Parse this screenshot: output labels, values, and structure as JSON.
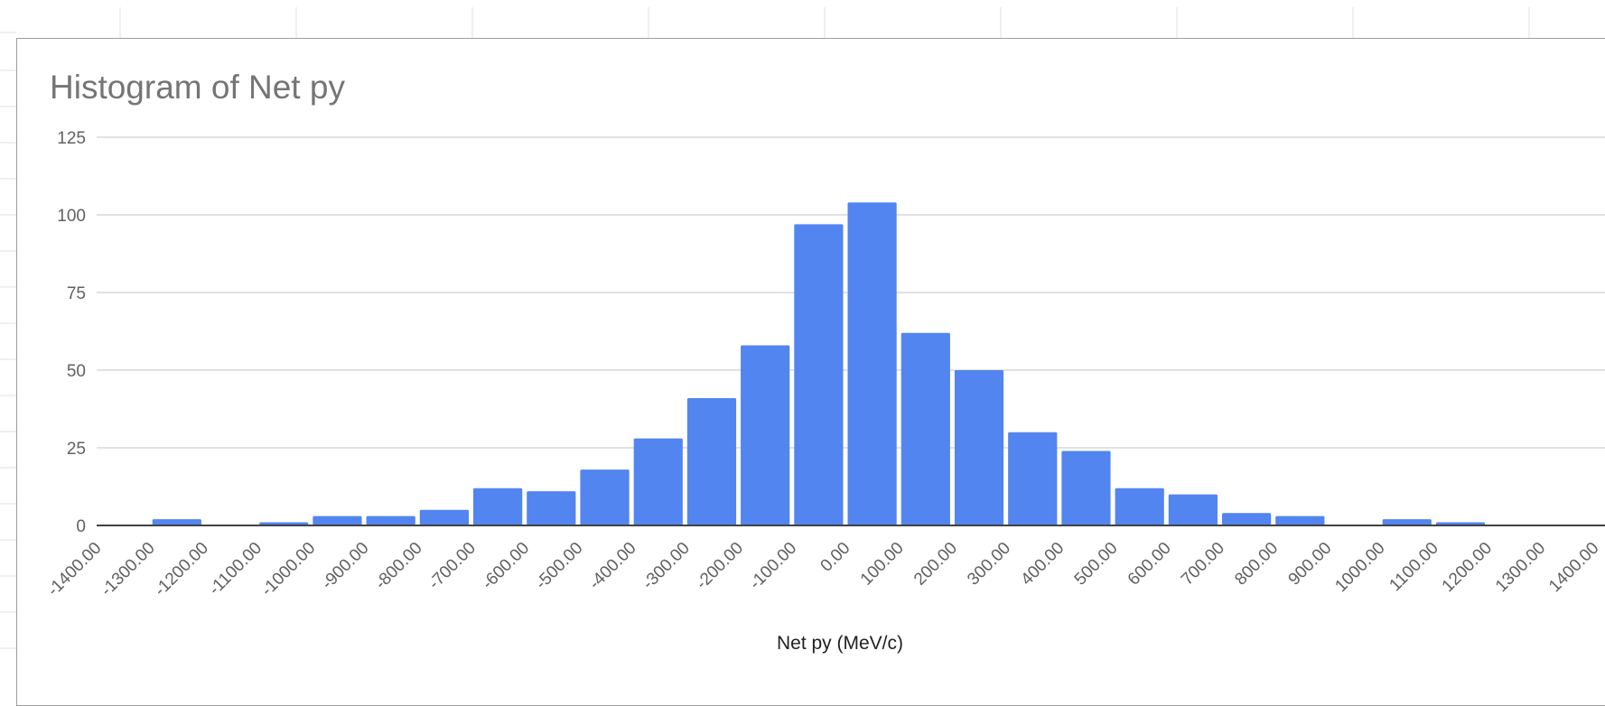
{
  "chart_data": {
    "type": "bar",
    "title": "Histogram of Net py",
    "xlabel": "Net py (MeV/c)",
    "ylabel": "",
    "ylim": [
      0,
      125
    ],
    "yticks": [
      "0",
      "25",
      "50",
      "75",
      "100",
      "125"
    ],
    "bin_edges": [
      "-1400.00",
      "-1300.00",
      "-1200.00",
      "-1100.00",
      "-1000.00",
      "-900.00",
      "-800.00",
      "-700.00",
      "-600.00",
      "-500.00",
      "-400.00",
      "-300.00",
      "-200.00",
      "-100.00",
      "0.00",
      "100.00",
      "200.00",
      "300.00",
      "400.00",
      "500.00",
      "600.00",
      "700.00",
      "800.00",
      "900.00",
      "1000.00",
      "1100.00",
      "1200.00",
      "1300.00",
      "1400.00"
    ],
    "counts": [
      0,
      2,
      0,
      1,
      3,
      3,
      5,
      12,
      11,
      18,
      28,
      41,
      58,
      97,
      104,
      62,
      50,
      30,
      24,
      12,
      10,
      4,
      3,
      0,
      2,
      1,
      0,
      0
    ],
    "color": "#5285ef",
    "grid": true,
    "legend": "none"
  }
}
